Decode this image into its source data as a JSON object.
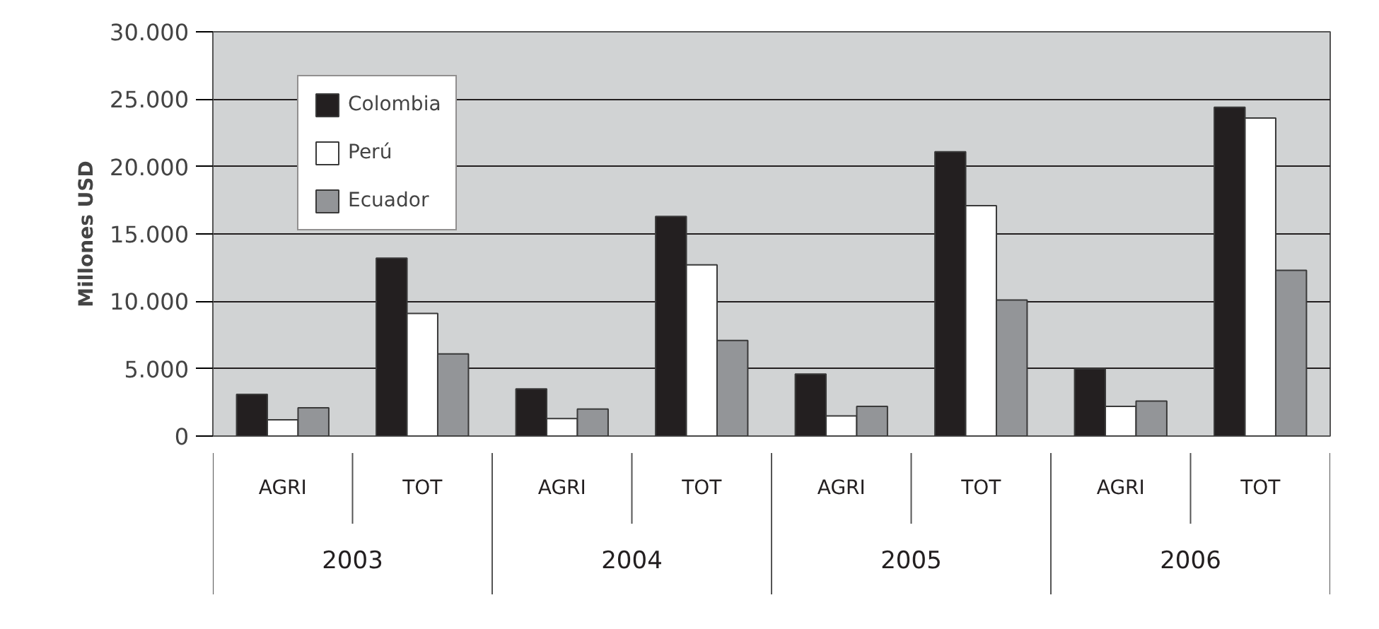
{
  "chart_data": {
    "type": "bar",
    "ylabel": "Millones USD",
    "categories": [
      "AGRI",
      "TOT",
      "AGRI",
      "TOT",
      "AGRI",
      "TOT",
      "AGRI",
      "TOT"
    ],
    "annotations": [
      "2003",
      "2004",
      "2005",
      "2006"
    ],
    "series": [
      {
        "name": "Colombia",
        "color": "#231f20",
        "values": [
          3100,
          13200,
          3500,
          16300,
          4600,
          21100,
          5000,
          24400
        ]
      },
      {
        "name": "Perú",
        "color": "#ffffff",
        "values": [
          1200,
          9100,
          1300,
          12700,
          1500,
          17100,
          2200,
          23600
        ]
      },
      {
        "name": "Ecuador",
        "color": "#939598",
        "values": [
          2100,
          6100,
          2000,
          7100,
          2200,
          10100,
          2600,
          12300
        ]
      }
    ],
    "ylim": [
      0,
      30000
    ],
    "yticks": [
      {
        "value": 0,
        "label": "0"
      },
      {
        "value": 5000,
        "label": "5.000"
      },
      {
        "value": 10000,
        "label": "10.000"
      },
      {
        "value": 15000,
        "label": "15.000"
      },
      {
        "value": 20000,
        "label": "20.000"
      },
      {
        "value": 25000,
        "label": "25.000"
      },
      {
        "value": 30000,
        "label": "30.000"
      }
    ],
    "grid": "y",
    "legend": "top left"
  }
}
